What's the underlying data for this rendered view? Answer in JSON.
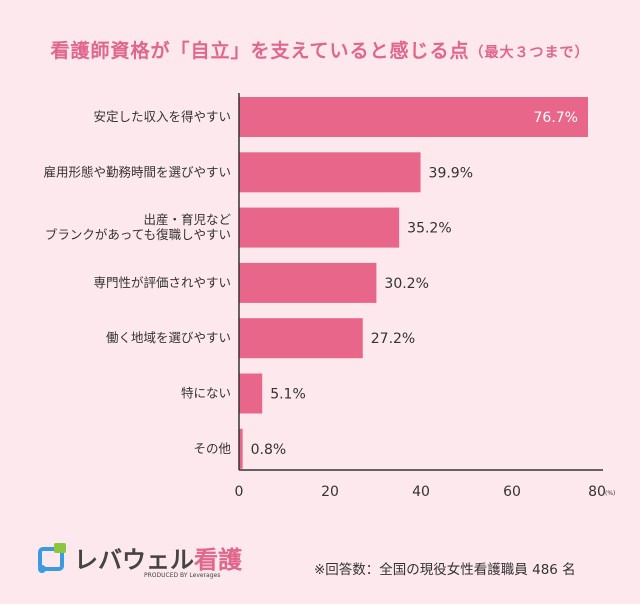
{
  "title": "看護師資格が「自立」を支えていると感じる点",
  "title_sub": "（最大３つまで）",
  "chart_data": {
    "type": "bar",
    "orientation": "horizontal",
    "title": "看護師資格が「自立」を支えていると感じる点（最大３つまで）",
    "categories": [
      "安定した収入を得やすい",
      "雇用形態や勤務時間を選びやすい",
      "出産・育児など\nブランクがあっても復職しやすい",
      "専門性が評価されやすい",
      "働く地域を選びやすい",
      "特にない",
      "その他"
    ],
    "values": [
      76.7,
      39.9,
      35.2,
      30.2,
      27.2,
      5.1,
      0.8
    ],
    "value_labels": [
      "76.7%",
      "39.9%",
      "35.2%",
      "30.2%",
      "27.2%",
      "5.1%",
      "0.8%"
    ],
    "xlim": [
      0,
      80
    ],
    "xticks": [
      "0",
      "20",
      "40",
      "60",
      "80"
    ],
    "xunit": "(%)",
    "grid": false,
    "bar_color": "#e8668a"
  },
  "logo": {
    "brand": "レバウェル",
    "brand_accent": "看護",
    "produced": "PRODUCED BY Leverages"
  },
  "note": "※回答数：全国の現役女性看護職員 486 名"
}
